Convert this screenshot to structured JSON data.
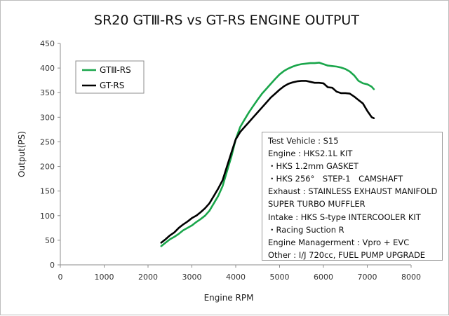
{
  "chart_data": {
    "type": "line",
    "title": "SR20 GTⅢ-RS vs GT-RS ENGINE OUTPUT",
    "xlabel": "Engine RPM",
    "ylabel": "Output(PS)",
    "xlim": [
      0,
      8000
    ],
    "ylim": [
      0,
      450
    ],
    "xticks": [
      "0",
      "1000",
      "2000",
      "3000",
      "4000",
      "5000",
      "6000",
      "7000",
      "8000"
    ],
    "yticks": [
      "0",
      "50",
      "100",
      "150",
      "200",
      "250",
      "300",
      "350",
      "400",
      "450"
    ],
    "grid": false,
    "legend_position": "top-left",
    "series": [
      {
        "name": "GTⅢ-RS",
        "color": "#1aa64b",
        "x": [
          2300,
          2400,
          2500,
          2600,
          2700,
          2800,
          2900,
          3000,
          3100,
          3200,
          3300,
          3400,
          3500,
          3600,
          3700,
          3800,
          3900,
          4000,
          4100,
          4200,
          4300,
          4400,
          4500,
          4600,
          4700,
          4800,
          4900,
          5000,
          5100,
          5200,
          5300,
          5400,
          5500,
          5600,
          5700,
          5800,
          5900,
          6000,
          6100,
          6200,
          6300,
          6400,
          6500,
          6600,
          6700,
          6800,
          6900,
          7000,
          7100,
          7150
        ],
        "y": [
          38,
          45,
          52,
          57,
          63,
          70,
          75,
          80,
          87,
          93,
          100,
          110,
          125,
          140,
          160,
          190,
          220,
          255,
          280,
          295,
          310,
          323,
          336,
          348,
          358,
          368,
          378,
          387,
          394,
          399,
          403,
          406,
          408,
          409,
          410,
          410,
          411,
          408,
          405,
          404,
          403,
          401,
          398,
          393,
          385,
          374,
          369,
          367,
          362,
          357
        ]
      },
      {
        "name": "GT-RS",
        "color": "#000000",
        "x": [
          2300,
          2400,
          2500,
          2600,
          2700,
          2800,
          2900,
          3000,
          3100,
          3200,
          3300,
          3400,
          3500,
          3600,
          3700,
          3800,
          3900,
          4000,
          4100,
          4200,
          4300,
          4400,
          4500,
          4600,
          4700,
          4800,
          4900,
          5000,
          5100,
          5200,
          5300,
          5400,
          5500,
          5600,
          5700,
          5800,
          5900,
          6000,
          6100,
          6200,
          6300,
          6400,
          6500,
          6600,
          6700,
          6800,
          6900,
          7000,
          7100,
          7150
        ],
        "y": [
          45,
          52,
          60,
          66,
          75,
          82,
          88,
          95,
          100,
          107,
          115,
          125,
          140,
          155,
          172,
          200,
          228,
          255,
          270,
          280,
          290,
          300,
          310,
          320,
          330,
          340,
          348,
          356,
          363,
          368,
          371,
          373,
          374,
          374,
          372,
          370,
          370,
          369,
          361,
          360,
          352,
          349,
          349,
          348,
          342,
          335,
          328,
          313,
          300,
          298
        ]
      }
    ],
    "info_box": [
      "Test Vehicle : S15",
      "Engine : HKS2.1L KIT",
      " ・HKS 1.2mm GASKET",
      " ・HKS 256°　STEP-1　CAMSHAFT",
      "Exhaust : STAINLESS EXHAUST MANIFOLD",
      "SUPER TURBO MUFFLER",
      "Intake : HKS S-type INTERCOOLER KIT",
      " ・Racing Suction R",
      "Engine Managerment : Vpro + EVC",
      "Other : I/J 720cc, FUEL PUMP UPGRADE"
    ]
  }
}
